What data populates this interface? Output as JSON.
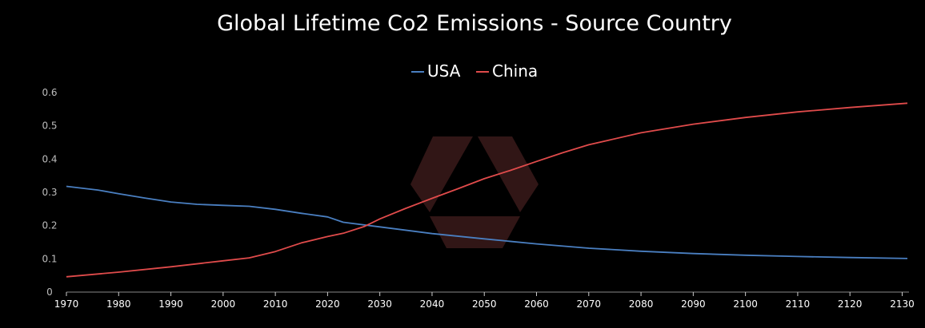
{
  "chart_data": {
    "type": "line",
    "title": "Global Lifetime Co2 Emissions - Source Country",
    "xlabel": "",
    "ylabel": "",
    "xlim": [
      1970,
      2131
    ],
    "ylim": [
      0,
      0.6
    ],
    "legend_position": "top-center",
    "yticks": [
      {
        "value": 0,
        "label": "0"
      },
      {
        "value": 0.1,
        "label": "0.1"
      },
      {
        "value": 0.2,
        "label": "0.2"
      },
      {
        "value": 0.3,
        "label": "0.3"
      },
      {
        "value": 0.4,
        "label": "0.4"
      },
      {
        "value": 0.5,
        "label": "0.5"
      },
      {
        "value": 0.6,
        "label": "0.6"
      }
    ],
    "xticks": [
      {
        "value": 1970,
        "label": "1970"
      },
      {
        "value": 1980,
        "label": "1980"
      },
      {
        "value": 1990,
        "label": "1990"
      },
      {
        "value": 2000,
        "label": "2000"
      },
      {
        "value": 2010,
        "label": "2010"
      },
      {
        "value": 2020,
        "label": "2020"
      },
      {
        "value": 2030,
        "label": "2030"
      },
      {
        "value": 2040,
        "label": "2040"
      },
      {
        "value": 2050,
        "label": "2050"
      },
      {
        "value": 2060,
        "label": "2060"
      },
      {
        "value": 2070,
        "label": "2070"
      },
      {
        "value": 2080,
        "label": "2080"
      },
      {
        "value": 2090,
        "label": "2090"
      },
      {
        "value": 2100,
        "label": "2100"
      },
      {
        "value": 2110,
        "label": "2110"
      },
      {
        "value": 2120,
        "label": "2120"
      },
      {
        "value": 2130,
        "label": "2130"
      }
    ],
    "series": [
      {
        "name": "USA",
        "color": "#4a7fc1",
        "x": [
          1970,
          1976,
          1980,
          1985,
          1990,
          1995,
          2000,
          2005,
          2010,
          2015,
          2020,
          2023,
          2030,
          2040,
          2050,
          2060,
          2070,
          2080,
          2090,
          2100,
          2110,
          2120,
          2131
        ],
        "y": [
          0.318,
          0.307,
          0.296,
          0.283,
          0.271,
          0.264,
          0.261,
          0.258,
          0.249,
          0.237,
          0.226,
          0.21,
          0.196,
          0.176,
          0.16,
          0.145,
          0.132,
          0.123,
          0.116,
          0.111,
          0.107,
          0.104,
          0.101
        ]
      },
      {
        "name": "China",
        "color": "#e04b4b",
        "x": [
          1970,
          1980,
          1990,
          2000,
          2005,
          2010,
          2015,
          2020,
          2023,
          2027,
          2030,
          2035,
          2040,
          2045,
          2050,
          2055,
          2060,
          2065,
          2070,
          2080,
          2090,
          2100,
          2110,
          2120,
          2131
        ],
        "y": [
          0.046,
          0.06,
          0.076,
          0.094,
          0.103,
          0.122,
          0.148,
          0.167,
          0.177,
          0.197,
          0.22,
          0.252,
          0.282,
          0.311,
          0.341,
          0.366,
          0.393,
          0.419,
          0.443,
          0.479,
          0.505,
          0.525,
          0.542,
          0.555,
          0.568
        ]
      }
    ]
  },
  "legend": {
    "usa_label": "USA",
    "china_label": "China"
  },
  "watermark": {
    "color": "#3a1a1a"
  }
}
